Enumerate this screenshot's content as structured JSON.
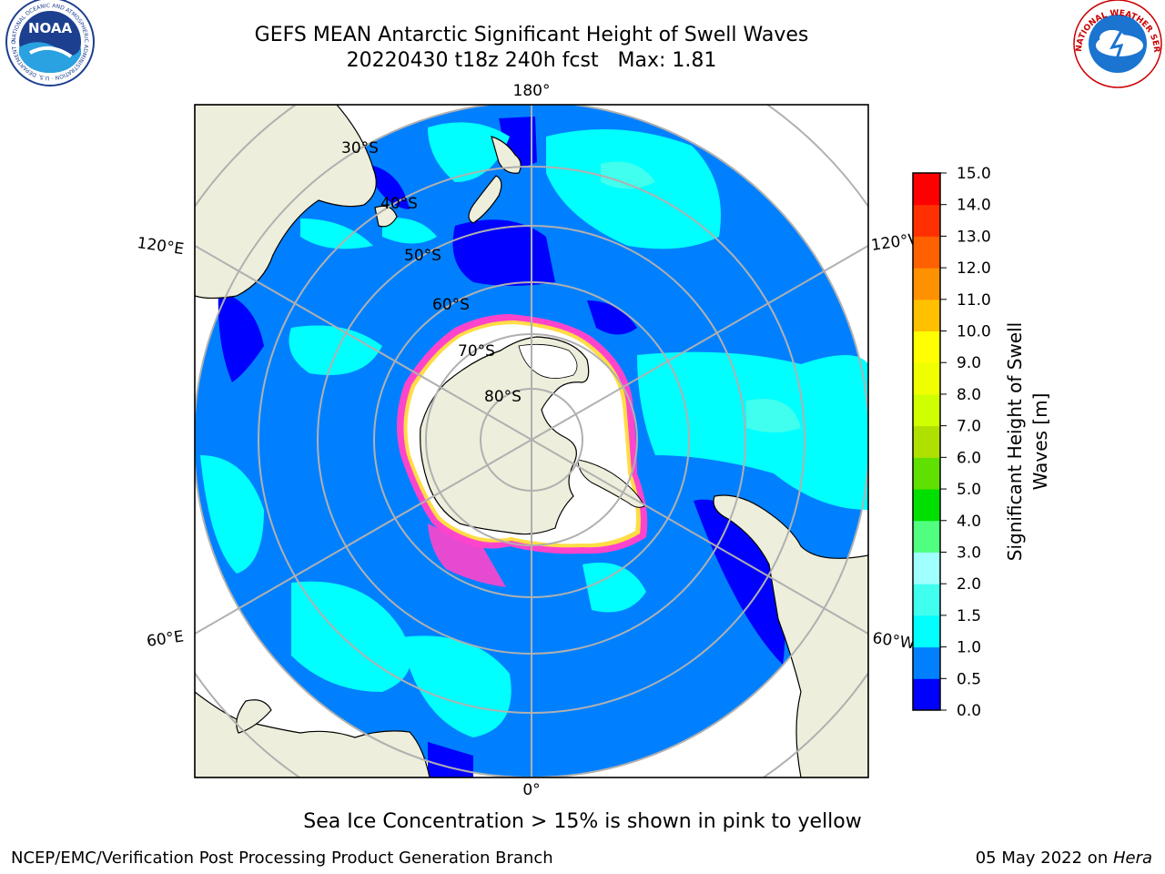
{
  "header": {
    "title_line1": "GEFS MEAN Antarctic Significant Height of Swell Waves",
    "title_line2": "20220430 t18z 240h fcst   Max: 1.81",
    "noaa_logo_text": "NOAA",
    "noaa_ring_text": "NATIONAL OCEANIC AND ATMOSPHERIC ADMINISTRATION · U.S. DEPARTMENT OF COMMERCE",
    "nws_ring_text": "NATIONAL WEATHER SERVICE"
  },
  "map": {
    "projection": "south-polar-stereographic",
    "longitude_labels": {
      "top": "180°",
      "bottom": "0°",
      "upper_left": "120°E",
      "upper_right": "120°W",
      "lower_left": "60°E",
      "lower_right": "60°W"
    },
    "latitude_labels": [
      "30°S",
      "40°S",
      "50°S",
      "60°S",
      "70°S",
      "80°S"
    ],
    "colors": {
      "land": "#eeeedc",
      "ice_shelf": "#ffffff",
      "sea_ice_edge": "#ff44cc",
      "gridline": "#b0b0b0"
    }
  },
  "colorbar": {
    "label": "Significant Height of Swell Waves [m]",
    "label_line1": "Significant Height of Swell",
    "label_line2": "Waves [m]",
    "ticks": [
      "15.0",
      "14.0",
      "13.0",
      "12.0",
      "11.0",
      "10.0",
      "9.0",
      "8.0",
      "7.0",
      "6.0",
      "5.0",
      "4.0",
      "3.0",
      "2.0",
      "1.5",
      "1.0",
      "0.5",
      "0.0"
    ],
    "bins": [
      {
        "range": "0.0-0.5",
        "color": "#0000ff"
      },
      {
        "range": "0.5-1.0",
        "color": "#0080ff"
      },
      {
        "range": "1.0-1.5",
        "color": "#00ffff"
      },
      {
        "range": "1.5-2.0",
        "color": "#40ffee"
      },
      {
        "range": "2.0-3.0",
        "color": "#a0ffff"
      },
      {
        "range": "3.0-4.0",
        "color": "#50ff80"
      },
      {
        "range": "4.0-5.0",
        "color": "#00e000"
      },
      {
        "range": "5.0-6.0",
        "color": "#60e000"
      },
      {
        "range": "6.0-7.0",
        "color": "#b0e000"
      },
      {
        "range": "7.0-8.0",
        "color": "#d0ff00"
      },
      {
        "range": "8.0-9.0",
        "color": "#f0ff00"
      },
      {
        "range": "9.0-10.0",
        "color": "#ffff00"
      },
      {
        "range": "10.0-11.0",
        "color": "#ffc000"
      },
      {
        "range": "11.0-12.0",
        "color": "#ff9000"
      },
      {
        "range": "12.0-13.0",
        "color": "#ff6000"
      },
      {
        "range": "13.0-14.0",
        "color": "#ff3000"
      },
      {
        "range": "14.0-15.0",
        "color": "#ff0000"
      }
    ]
  },
  "footer": {
    "caption": "Sea Ice Concentration > 15% is shown in pink to yellow",
    "credit_left": "NCEP/EMC/Verification Post Processing Product Generation Branch",
    "credit_date": "05 May 2022 on ",
    "credit_host": "Hera"
  }
}
